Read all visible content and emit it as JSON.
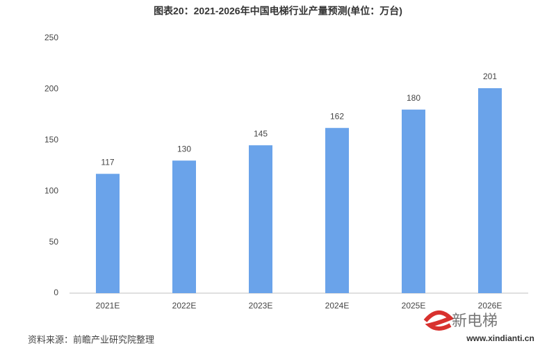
{
  "chart_data": {
    "type": "bar",
    "title": "图表20：2021-2026年中国电梯行业产量预测(单位：万台)",
    "categories": [
      "2021E",
      "2022E",
      "2023E",
      "2024E",
      "2025E",
      "2026E"
    ],
    "values": [
      117,
      130,
      145,
      162,
      180,
      201
    ],
    "color": "#6aa3ea",
    "ylim": [
      0,
      250
    ],
    "yticks": [
      0,
      50,
      100,
      150,
      200,
      250
    ],
    "grid": false,
    "source": "资料来源：前瞻产业研究院整理",
    "watermark_logo": "新电梯",
    "watermark_url": "www.xindianti.cn"
  }
}
